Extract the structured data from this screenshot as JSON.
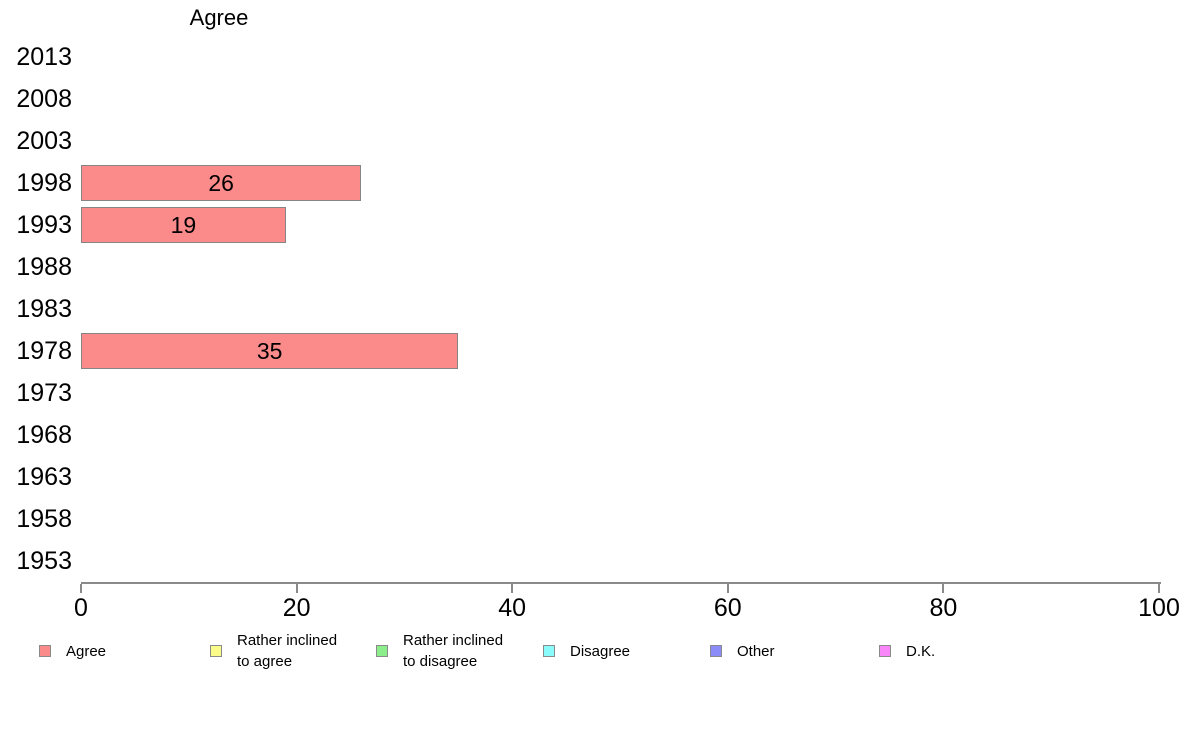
{
  "chart_data": {
    "type": "bar",
    "orientation": "horizontal",
    "title": "Agree",
    "categories": [
      "2013",
      "2008",
      "2003",
      "1998",
      "1993",
      "1988",
      "1983",
      "1978",
      "1973",
      "1968",
      "1963",
      "1958",
      "1953"
    ],
    "values": [
      null,
      null,
      null,
      26,
      19,
      null,
      null,
      35,
      null,
      null,
      null,
      null,
      null
    ],
    "bar_labels": [
      null,
      null,
      null,
      "26",
      "19",
      null,
      null,
      "35",
      null,
      null,
      null,
      null,
      null
    ],
    "xlabel": "",
    "ylabel": "",
    "xlim": [
      0,
      100
    ],
    "xticks": [
      "0",
      "20",
      "40",
      "60",
      "80",
      "100"
    ],
    "grid": "off",
    "legend_position": "bottom",
    "colors": {
      "bar_fill": "#FB8A8A",
      "bar_border": "#858585",
      "axis": "#8A8A8A",
      "text": "#000000"
    },
    "legend": [
      {
        "label": "Agree",
        "lines": [
          "Agree"
        ],
        "color": "#FB8A8A"
      },
      {
        "label": "Rather inclined to agree",
        "lines": [
          "Rather inclined",
          "to agree"
        ],
        "color": "#FBFB8A"
      },
      {
        "label": "Rather inclined to disagree",
        "lines": [
          "Rather inclined",
          "to disagree"
        ],
        "color": "#8BEE8B"
      },
      {
        "label": "Disagree",
        "lines": [
          "Disagree"
        ],
        "color": "#8AFBFB"
      },
      {
        "label": "Other",
        "lines": [
          "Other"
        ],
        "color": "#8C8CF8"
      },
      {
        "label": "D.K.",
        "lines": [
          "D.K."
        ],
        "color": "#FA87FA"
      }
    ]
  }
}
